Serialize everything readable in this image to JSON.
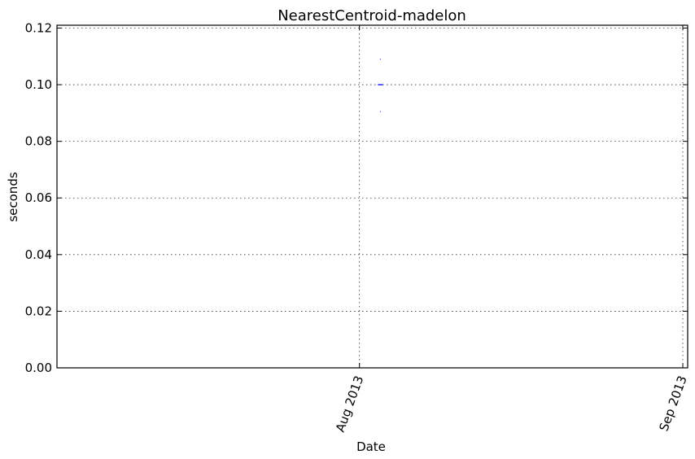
{
  "chart_data": {
    "type": "scatter",
    "title": "NearestCentroid-madelon",
    "xlabel": "Date",
    "ylabel": "seconds",
    "x_ticks": [
      {
        "date": "2013-08-01",
        "label": "Aug 2013"
      },
      {
        "date": "2013-09-01",
        "label": "Sep 2013"
      }
    ],
    "xlim": [
      "2013-07-03",
      "2013-09-01"
    ],
    "y_ticks": [
      0.0,
      0.02,
      0.04,
      0.06,
      0.08,
      0.1,
      0.12
    ],
    "y_tick_labels": [
      "0.00",
      "0.02",
      "0.04",
      "0.06",
      "0.08",
      "0.10",
      "0.12"
    ],
    "ylim": [
      0.0,
      0.121
    ],
    "grid": true,
    "series": [
      {
        "color": "#0000ff",
        "points": [
          {
            "x": "2013-08-03",
            "y": 0.1,
            "marker": "dash"
          },
          {
            "x": "2013-08-03",
            "y": 0.109,
            "marker": "dot"
          },
          {
            "x": "2013-08-03",
            "y": 0.0905,
            "marker": "dot"
          }
        ]
      }
    ]
  }
}
